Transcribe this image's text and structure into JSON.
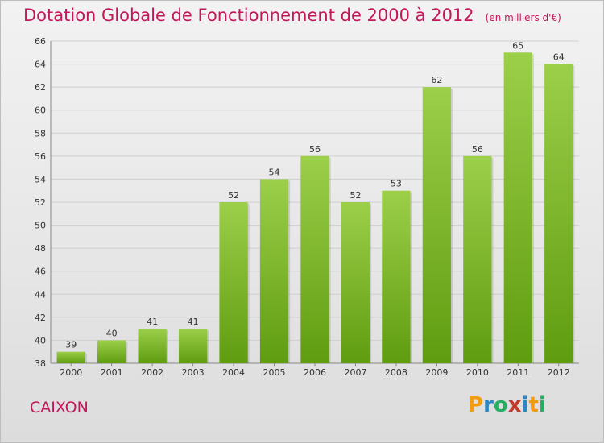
{
  "chart_data": {
    "type": "bar",
    "title": "Dotation Globale de Fonctionnement de 2000 à 2012",
    "subtitle": "(en milliers d'€)",
    "categories": [
      "2000",
      "2001",
      "2002",
      "2003",
      "2004",
      "2005",
      "2006",
      "2007",
      "2008",
      "2009",
      "2010",
      "2011",
      "2012"
    ],
    "values": [
      39,
      40,
      41,
      41,
      52,
      54,
      56,
      52,
      53,
      62,
      56,
      65,
      64
    ],
    "ylim": [
      38,
      66
    ],
    "yticks": [
      38,
      40,
      42,
      44,
      46,
      48,
      50,
      52,
      54,
      56,
      58,
      60,
      62,
      64,
      66
    ],
    "grid": true,
    "bar_color_top": "#9ccf4a",
    "bar_color_bottom": "#5f9c10"
  },
  "footer": {
    "commune": "CAIXON",
    "logo": {
      "text": "Proxiti",
      "letters": [
        "P",
        "r",
        "o",
        "x",
        "i",
        "t",
        "i"
      ],
      "colors": [
        "#f39c12",
        "#2e86c1",
        "#27ae60",
        "#c0392b",
        "#2e86c1",
        "#f39c12",
        "#27ae60"
      ]
    }
  }
}
